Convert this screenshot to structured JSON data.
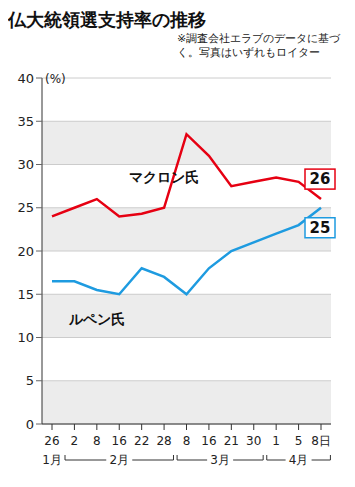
{
  "chart_data": {
    "type": "line",
    "title": "仏大統領選支持率の推移",
    "note": "※調査会社エラブのデータに基づく。写真はいずれもロイター",
    "y_label": "(%)",
    "categories": [
      "26",
      "2",
      "8",
      "16",
      "22",
      "28",
      "8",
      "16",
      "21",
      "30",
      "1",
      "5",
      "8日"
    ],
    "month_groups": [
      {
        "label": "1月",
        "from": 0,
        "to": 0
      },
      {
        "label": "2月",
        "from": 1,
        "to": 5
      },
      {
        "label": "3月",
        "from": 6,
        "to": 9
      },
      {
        "label": "4月",
        "from": 10,
        "to": 12
      }
    ],
    "series": [
      {
        "name": "マクロン氏",
        "color": "#e60012",
        "values": [
          24,
          25,
          26,
          24,
          24.3,
          25,
          33.5,
          31,
          27.5,
          28,
          28.5,
          28,
          26
        ],
        "value_labels": [
          null,
          null,
          null,
          null,
          null,
          null,
          null,
          null,
          null,
          null,
          null,
          null,
          "26"
        ]
      },
      {
        "name": "ルペン氏",
        "color": "#1e9be0",
        "values": [
          16.5,
          16.5,
          15.5,
          15,
          18,
          17,
          15,
          18,
          20,
          21,
          22,
          23,
          25
        ],
        "value_labels": [
          null,
          null,
          null,
          null,
          null,
          null,
          null,
          null,
          null,
          null,
          null,
          null,
          "25"
        ]
      }
    ],
    "ylim": [
      0,
      40
    ],
    "yticks": [
      0,
      5,
      10,
      15,
      20,
      25,
      30,
      35,
      40
    ],
    "grid": true
  }
}
